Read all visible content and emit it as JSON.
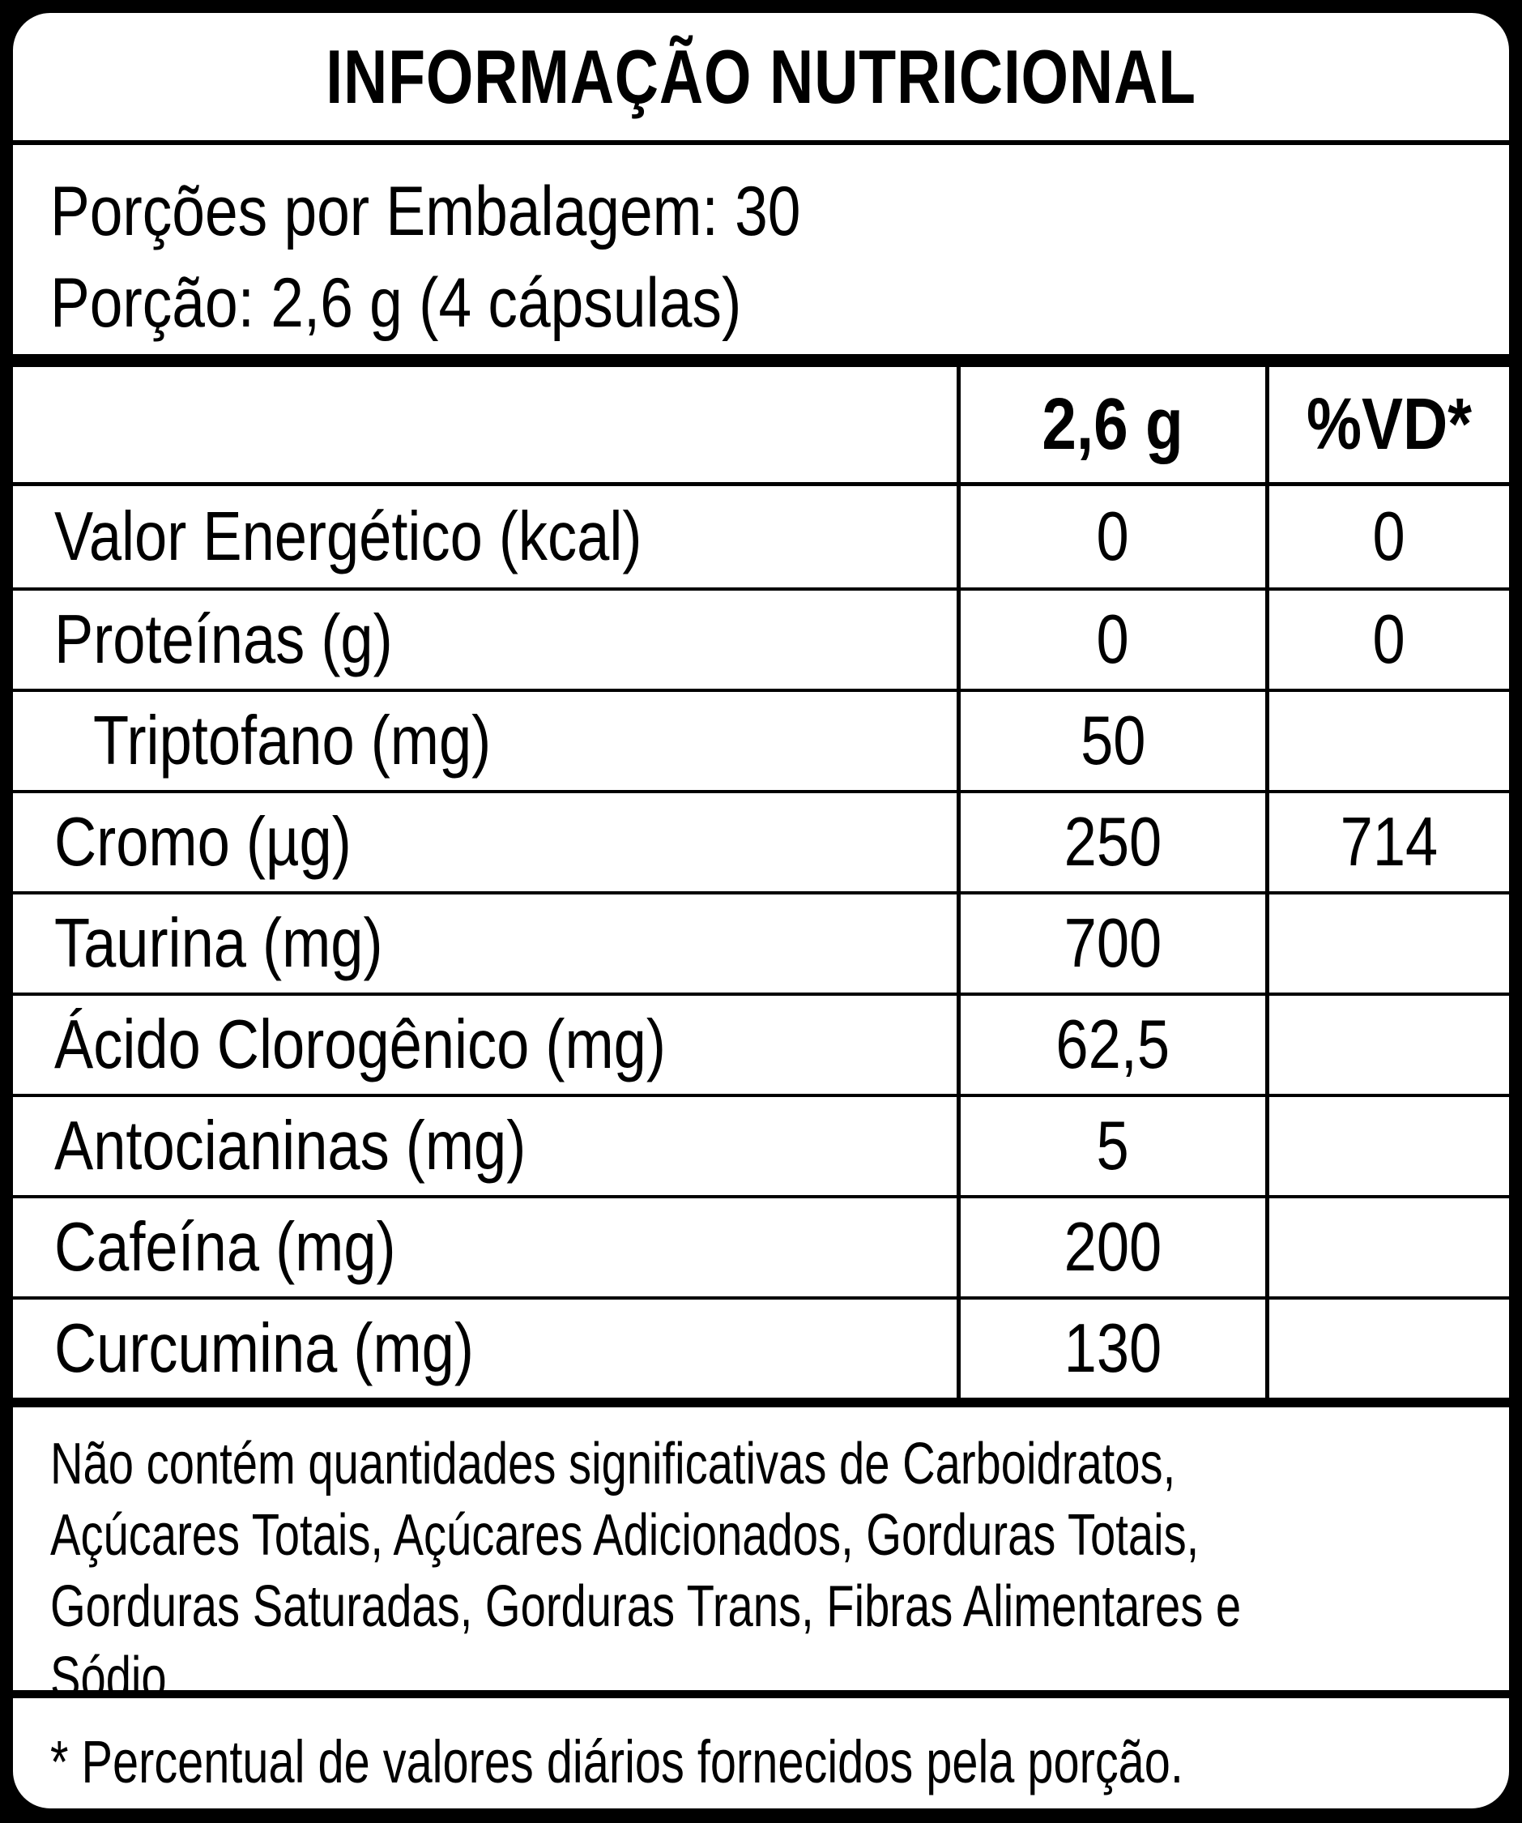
{
  "title": "INFORMAÇÃO NUTRICIONAL",
  "serving_info": {
    "servings_per_package": "Porções por Embalagem: 30",
    "serving_size": "Porção: 2,6 g (4 cápsulas)"
  },
  "table": {
    "columns": [
      "",
      "2,6 g",
      "%VD*"
    ],
    "rows": [
      {
        "label": "Valor Energético (kcal)",
        "amount": "0",
        "dv": "0",
        "indent": false
      },
      {
        "label": "Proteínas (g)",
        "amount": "0",
        "dv": "0",
        "indent": false
      },
      {
        "label": "Triptofano (mg)",
        "amount": "50",
        "dv": "",
        "indent": true
      },
      {
        "label": "Cromo (µg)",
        "amount": "250",
        "dv": "714",
        "indent": false
      },
      {
        "label": "Taurina (mg)",
        "amount": "700",
        "dv": "",
        "indent": false
      },
      {
        "label": "Ácido Clorogênico (mg)",
        "amount": "62,5",
        "dv": "",
        "indent": false
      },
      {
        "label": "Antocianinas (mg)",
        "amount": "5",
        "dv": "",
        "indent": false
      },
      {
        "label": "Cafeína (mg)",
        "amount": "200",
        "dv": "",
        "indent": false
      },
      {
        "label": "Curcumina (mg)",
        "amount": "130",
        "dv": "",
        "indent": false
      }
    ]
  },
  "insignificant_note": {
    "lines": [
      "Não contém quantidades significativas de Carboidratos,",
      "Açúcares Totais, Açúcares Adicionados, Gorduras Totais,",
      "Gorduras Saturadas, Gorduras Trans, Fibras Alimentares e",
      "Sódio."
    ]
  },
  "footnote": "* Percentual de valores diários fornecidos pela porção.",
  "colors": {
    "background": "#000000",
    "panel": "#ffffff",
    "ink": "#000000"
  }
}
